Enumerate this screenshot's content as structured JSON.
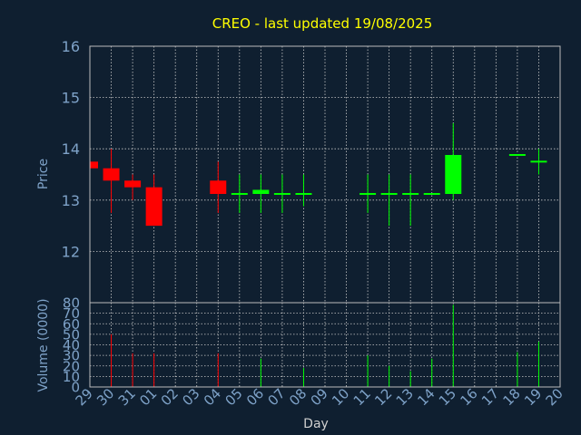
{
  "chart_data": [
    {
      "type": "candlestick",
      "title": "CREO - last updated 19/08/2025",
      "xlabel": "Day",
      "ylabel": "Price",
      "ylim": [
        11.0,
        16.0
      ],
      "yticks": [
        "12",
        "13",
        "14",
        "15",
        "16"
      ],
      "grid": true,
      "categories": [
        "29",
        "30",
        "31",
        "01",
        "02",
        "03",
        "04",
        "05",
        "06",
        "07",
        "08",
        "09",
        "10",
        "11",
        "12",
        "13",
        "14",
        "15",
        "16",
        "17",
        "18",
        "19",
        "20"
      ],
      "candles": [
        {
          "day": "29",
          "open": 13.75,
          "close": 13.62,
          "high": 13.75,
          "low": 13.62
        },
        {
          "day": "30",
          "open": 13.62,
          "close": 13.38,
          "high": 14.0,
          "low": 12.75
        },
        {
          "day": "31",
          "open": 13.38,
          "close": 13.25,
          "high": 13.5,
          "low": 13.0
        },
        {
          "day": "01",
          "open": 13.25,
          "close": 12.5,
          "high": 13.5,
          "low": 12.5
        },
        {
          "day": "04",
          "open": 13.38,
          "close": 13.12,
          "high": 13.75,
          "low": 12.75
        },
        {
          "day": "05",
          "open": 13.12,
          "close": 13.12,
          "high": 13.5,
          "low": 12.75
        },
        {
          "day": "06",
          "open": 13.12,
          "close": 13.2,
          "high": 13.5,
          "low": 12.75
        },
        {
          "day": "07",
          "open": 13.12,
          "close": 13.12,
          "high": 13.5,
          "low": 12.75
        },
        {
          "day": "08",
          "open": 13.12,
          "close": 13.12,
          "high": 13.5,
          "low": 12.88
        },
        {
          "day": "11",
          "open": 13.12,
          "close": 13.12,
          "high": 13.5,
          "low": 12.75
        },
        {
          "day": "12",
          "open": 13.12,
          "close": 13.12,
          "high": 13.5,
          "low": 12.5
        },
        {
          "day": "13",
          "open": 13.12,
          "close": 13.12,
          "high": 13.5,
          "low": 12.5
        },
        {
          "day": "14",
          "open": 13.12,
          "close": 13.12,
          "high": 13.12,
          "low": 13.12
        },
        {
          "day": "15",
          "open": 13.12,
          "close": 13.88,
          "high": 14.5,
          "low": 13.0
        },
        {
          "day": "18",
          "open": 13.88,
          "close": 13.88,
          "high": 13.88,
          "low": 13.88
        },
        {
          "day": "19",
          "open": 13.75,
          "close": 13.75,
          "high": 14.0,
          "low": 13.5
        }
      ]
    },
    {
      "type": "bar",
      "xlabel": "Day",
      "ylabel": "Volume (0000)",
      "ylim": [
        0,
        80
      ],
      "yticks": [
        "0",
        "10",
        "20",
        "30",
        "40",
        "50",
        "60",
        "70",
        "80"
      ],
      "grid": true,
      "categories": [
        "29",
        "30",
        "31",
        "01",
        "02",
        "03",
        "04",
        "05",
        "06",
        "07",
        "08",
        "09",
        "10",
        "11",
        "12",
        "13",
        "14",
        "15",
        "16",
        "17",
        "18",
        "19",
        "20"
      ],
      "values": [
        0,
        50,
        32,
        32,
        0,
        0,
        32,
        0,
        27,
        0,
        18,
        0,
        0,
        30,
        20,
        15,
        27,
        78,
        0,
        0,
        33,
        43,
        0
      ],
      "directions": [
        "",
        "down",
        "down",
        "down",
        "",
        "",
        "down",
        "",
        "up",
        "",
        "up",
        "",
        "",
        "up",
        "up",
        "up",
        "up",
        "up",
        "",
        "",
        "up",
        "up",
        ""
      ]
    }
  ],
  "colors": {
    "background": "#0f1f30",
    "frame": "#bbbbbb",
    "grid": "#c8c8c8",
    "axis_text": "#7ea2c8",
    "title": "#ffff00",
    "xlabel": "#d0d0d0",
    "up": "#00ff00",
    "down": "#ff0000"
  }
}
